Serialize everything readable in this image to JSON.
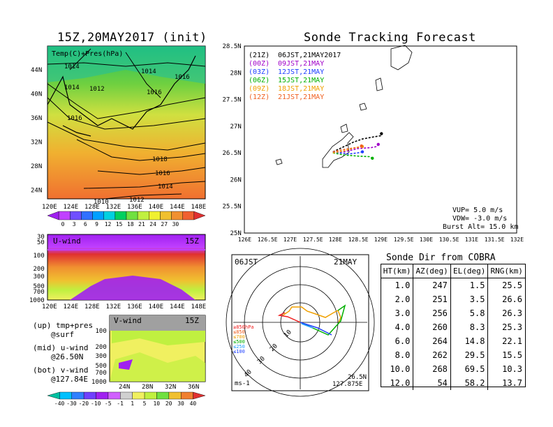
{
  "left_title": "15Z,20MAY2017 (init)",
  "right_title": "Sonde Tracking Forecast",
  "temp_map": {
    "label": "Temp(C)+Pres(hPa)",
    "y_ticks": [
      "44N",
      "40N",
      "36N",
      "32N",
      "28N",
      "24N"
    ],
    "x_ticks": [
      "120E",
      "124E",
      "128E",
      "132E",
      "136E",
      "140E",
      "144E",
      "148E"
    ],
    "isobar_labels": [
      "1014",
      "1014",
      "1016",
      "1014",
      "1012",
      "1016",
      "1016",
      "1018",
      "1016",
      "1014",
      "1012",
      "1010"
    ],
    "colorbar_ticks": [
      "0",
      "3",
      "6",
      "9",
      "12",
      "15",
      "18",
      "21",
      "24",
      "27",
      "30"
    ],
    "colorbar_colors": [
      "#a020f0",
      "#c040ff",
      "#7050ff",
      "#3070ff",
      "#00a0ff",
      "#00d0e0",
      "#00d060",
      "#70e040",
      "#c0f040",
      "#f0f030",
      "#f0c030",
      "#f09030",
      "#f06030",
      "#e03030"
    ]
  },
  "u_wind": {
    "label": "U-wind",
    "time": "15Z",
    "y_ticks": [
      "30",
      "50",
      "100",
      "200",
      "300",
      "500",
      "700",
      "1000"
    ],
    "x_ticks": [
      "120E",
      "124E",
      "128E",
      "132E",
      "136E",
      "140E",
      "144E",
      "148E"
    ]
  },
  "v_wind": {
    "label": "V-wind",
    "time": "15Z",
    "y_ticks": [
      "100",
      "200",
      "300",
      "500",
      "700",
      "1000"
    ],
    "x_ticks": [
      "24N",
      "28N",
      "32N",
      "36N"
    ]
  },
  "legend_notes": [
    "(up) tmp+pres",
    "@surf",
    "(mid) u-wind",
    "@26.50N",
    "(bot) v-wind",
    "@127.84E"
  ],
  "wind_colorbar": {
    "ticks": [
      "-40",
      "-30",
      "-20",
      "-10",
      "-5",
      "-1",
      "1",
      "5",
      "10",
      "20",
      "30",
      "40"
    ],
    "colors": [
      "#00c0a0",
      "#00c0ff",
      "#3080ff",
      "#7040ff",
      "#a020f0",
      "#d060ff",
      "#d0d0d0",
      "#f0f060",
      "#c0f040",
      "#70e040",
      "#f0c030",
      "#f08030",
      "#e03030"
    ]
  },
  "tracking": {
    "y_ticks": [
      "28.5N",
      "28N",
      "27.5N",
      "27N",
      "26.5N",
      "26N",
      "25.5N",
      "25N"
    ],
    "x_ticks": [
      "126E",
      "126.5E",
      "127E",
      "127.5E",
      "128E",
      "128.5E",
      "129E",
      "129.5E",
      "130E",
      "130.5E",
      "131E",
      "131.5E",
      "132E"
    ],
    "legend": [
      {
        "code": "(21Z)",
        "text": "06JST,21MAY2017",
        "color": "#000000"
      },
      {
        "code": "(00Z)",
        "text": "09JST,21MAY",
        "color": "#a000c8"
      },
      {
        "code": "(03Z)",
        "text": "12JST,21MAY",
        "color": "#2040ff"
      },
      {
        "code": "(06Z)",
        "text": "15JST,21MAY",
        "color": "#00b000"
      },
      {
        "code": "(09Z)",
        "text": "18JST,21MAY",
        "color": "#f0a000"
      },
      {
        "code": "(12Z)",
        "text": "21JST,21MAY",
        "color": "#f06020"
      }
    ],
    "params": [
      "VUP= 5.0 m/s",
      "VDW= -3.0 m/s",
      "Burst Alt= 15.0 km"
    ]
  },
  "chart_data": {
    "type": "line",
    "xlim": [
      126,
      132
    ],
    "ylim": [
      25,
      28.5
    ],
    "series": [
      {
        "name": "06JST,21MAY2017",
        "x": [
          127.95,
          128.2,
          128.4,
          128.6,
          128.85,
          129.0,
          129.02
        ],
        "y": [
          26.52,
          26.62,
          26.7,
          26.76,
          26.8,
          26.82,
          26.86
        ]
      },
      {
        "name": "09JST,21MAY",
        "x": [
          127.95,
          128.2,
          128.5,
          128.8,
          128.92,
          128.95
        ],
        "y": [
          26.52,
          26.52,
          26.58,
          26.6,
          26.62,
          26.66
        ]
      },
      {
        "name": "12JST,21MAY",
        "x": [
          127.95,
          128.1,
          128.3,
          128.5,
          128.6
        ],
        "y": [
          26.52,
          26.5,
          26.48,
          26.5,
          26.52
        ]
      },
      {
        "name": "15JST,21MAY",
        "x": [
          127.95,
          128.2,
          128.5,
          128.75,
          128.82
        ],
        "y": [
          26.5,
          26.46,
          26.44,
          26.43,
          26.4
        ]
      },
      {
        "name": "18JST,21MAY",
        "x": [
          127.95,
          128.2,
          128.45,
          128.6
        ],
        "y": [
          26.5,
          26.54,
          26.6,
          26.62
        ]
      },
      {
        "name": "21JST,21MAY",
        "x": [
          127.95,
          128.1,
          128.3,
          128.5,
          128.58
        ],
        "y": [
          26.52,
          26.55,
          26.58,
          26.6,
          26.63
        ]
      }
    ]
  },
  "polar": {
    "time_left": "06JST",
    "time_right": "21MAY",
    "unit": "ms-1",
    "lat": "26.5N",
    "lon": "127.875E",
    "ring_labels": [
      "10",
      "20",
      "30",
      "40"
    ],
    "pressure_legend": [
      {
        "text": "≥850hPa",
        "color": "#f02020"
      },
      {
        "text": "≤850",
        "color": "#f06020"
      },
      {
        "text": "≤700",
        "color": "#f0a000"
      },
      {
        "text": "≤500",
        "color": "#00b000"
      },
      {
        "text": "≤250",
        "color": "#20a0ff"
      },
      {
        "text": "≤100",
        "color": "#2040ff"
      }
    ]
  },
  "table": {
    "title": "Sonde Dir from COBRA",
    "headers": [
      "HT(km)",
      "AZ(deg)",
      "EL(deg)",
      "RNG(km)"
    ],
    "rows": [
      [
        "1.0",
        "247",
        "1.5",
        "25.5"
      ],
      [
        "2.0",
        "251",
        "3.5",
        "26.6"
      ],
      [
        "3.0",
        "256",
        "5.8",
        "26.3"
      ],
      [
        "4.0",
        "260",
        "8.3",
        "25.3"
      ],
      [
        "6.0",
        "264",
        "14.8",
        "22.1"
      ],
      [
        "8.0",
        "262",
        "29.5",
        "15.5"
      ],
      [
        "10.0",
        "268",
        "69.5",
        "10.3"
      ],
      [
        "12.0",
        "54",
        "58.2",
        "13.7"
      ]
    ]
  }
}
